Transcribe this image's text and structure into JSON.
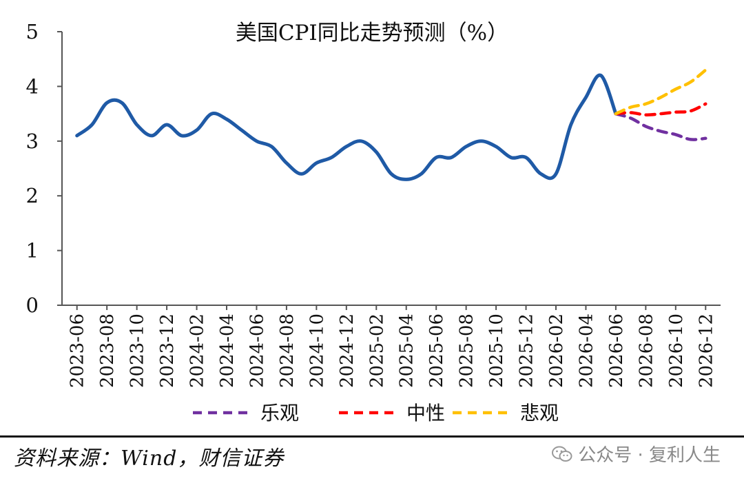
{
  "chart_data": {
    "type": "line",
    "title": "美国CPI同比走势预测（%）",
    "xlabel": "",
    "ylabel": "",
    "ylim": [
      0,
      5
    ],
    "yticks": [
      0,
      1,
      2,
      3,
      4,
      5
    ],
    "x_tick_labels": [
      "2023-06",
      "2023-08",
      "2023-10",
      "2023-12",
      "2024-02",
      "2024-04",
      "2024-06",
      "2024-08",
      "2024-10",
      "2024-12",
      "2025-02",
      "2025-04",
      "2025-06",
      "2025-08",
      "2025-10",
      "2025-12",
      "2026-02",
      "2026-04",
      "2026-06",
      "2026-08",
      "2026-10",
      "2026-12"
    ],
    "grid": false,
    "legend_position": "bottom",
    "series": [
      {
        "name": "",
        "color": "#1f5aa6",
        "style": "solid",
        "x": [
          "2023-06",
          "2023-07",
          "2023-08",
          "2023-09",
          "2023-10",
          "2023-11",
          "2023-12",
          "2024-01",
          "2024-02",
          "2024-03",
          "2024-04",
          "2024-05",
          "2024-06",
          "2024-07",
          "2024-08",
          "2024-09",
          "2024-10",
          "2024-11",
          "2024-12",
          "2025-01",
          "2025-02",
          "2025-03",
          "2025-04",
          "2025-05",
          "2025-06",
          "2025-07",
          "2025-08",
          "2025-09",
          "2025-10",
          "2025-11",
          "2025-12",
          "2026-01",
          "2026-02",
          "2026-03",
          "2026-04",
          "2026-05",
          "2026-06"
        ],
        "values": [
          3.1,
          3.3,
          3.7,
          3.7,
          3.3,
          3.1,
          3.3,
          3.1,
          3.2,
          3.5,
          3.4,
          3.2,
          3.0,
          2.9,
          2.6,
          2.4,
          2.6,
          2.7,
          2.9,
          3.0,
          2.8,
          2.4,
          2.3,
          2.4,
          2.7,
          2.7,
          2.9,
          3.0,
          2.9,
          2.7,
          2.7,
          2.4,
          2.4,
          3.3,
          3.8,
          4.2,
          3.5
        ]
      },
      {
        "name": "乐观",
        "color": "#7030a0",
        "style": "dashed",
        "x": [
          "2026-06",
          "2026-07",
          "2026-08",
          "2026-09",
          "2026-10",
          "2026-11",
          "2026-12"
        ],
        "values": [
          3.5,
          3.42,
          3.27,
          3.18,
          3.12,
          3.03,
          3.05
        ]
      },
      {
        "name": "中性",
        "color": "#ff0000",
        "style": "dashed",
        "x": [
          "2026-06",
          "2026-07",
          "2026-08",
          "2026-09",
          "2026-10",
          "2026-11",
          "2026-12"
        ],
        "values": [
          3.5,
          3.52,
          3.48,
          3.5,
          3.53,
          3.55,
          3.68
        ]
      },
      {
        "name": "悲观",
        "color": "#ffc000",
        "style": "dashed",
        "x": [
          "2026-06",
          "2026-07",
          "2026-08",
          "2026-09",
          "2026-10",
          "2026-11",
          "2026-12"
        ],
        "values": [
          3.5,
          3.62,
          3.68,
          3.8,
          3.95,
          4.08,
          4.3
        ]
      }
    ]
  },
  "source": "资料来源：Wind，财信证券",
  "watermark": "公众号 · 复利人生"
}
